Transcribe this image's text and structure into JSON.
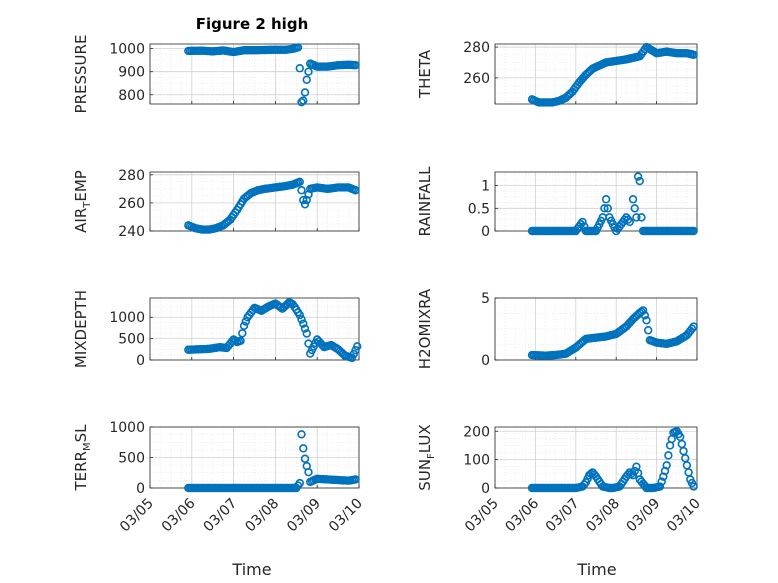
{
  "figure": {
    "title": "Figure 2 high",
    "xlabel": "Time",
    "date_ticks": [
      "03/05",
      "03/06",
      "03/07",
      "03/08",
      "03/09",
      "03/10"
    ]
  },
  "colors": {
    "marker": "#0072BD",
    "grid": "#dcdcdc",
    "axis": "#262626"
  },
  "chart_data": [
    {
      "type": "scatter",
      "name": "pressure",
      "ylabel": "PRESSURE",
      "xlim": [
        "03/05",
        "03/10"
      ],
      "ylim": [
        760,
        1020
      ],
      "yticks": [
        800,
        900,
        1000
      ],
      "grid": true,
      "x": [
        "03/05 22:00",
        "03/06 06:00",
        "03/06 12:00",
        "03/06 18:00",
        "03/07 00:00",
        "03/07 06:00",
        "03/07 12:00",
        "03/07 18:00",
        "03/08 00:00",
        "03/08 06:00",
        "03/08 10:00",
        "03/08 13:00",
        "03/08 14:00",
        "03/08 15:00",
        "03/08 16:00",
        "03/08 17:00",
        "03/08 18:00",
        "03/08 19:00",
        "03/08 20:00",
        "03/09 00:00",
        "03/09 06:00",
        "03/09 12:00",
        "03/09 18:00",
        "03/09 22:00"
      ],
      "y": [
        990,
        991,
        988,
        992,
        985,
        993,
        993,
        994,
        995,
        995,
        999,
        1005,
        915,
        768,
        775,
        810,
        865,
        900,
        935,
        922,
        922,
        928,
        930,
        928
      ]
    },
    {
      "type": "scatter",
      "name": "theta",
      "ylabel": "THETA",
      "xlim": [
        "03/05",
        "03/10"
      ],
      "ylim": [
        243,
        282
      ],
      "yticks": [
        260,
        280
      ],
      "grid": true,
      "x": [
        "03/05 22:00",
        "03/06 02:00",
        "03/06 06:00",
        "03/06 10:00",
        "03/06 14:00",
        "03/06 18:00",
        "03/06 22:00",
        "03/07 02:00",
        "03/07 06:00",
        "03/07 10:00",
        "03/07 14:00",
        "03/07 18:00",
        "03/08 00:00",
        "03/08 06:00",
        "03/08 10:00",
        "03/08 14:00",
        "03/08 18:00",
        "03/09 00:00",
        "03/09 06:00",
        "03/09 12:00",
        "03/09 18:00",
        "03/09 22:00"
      ],
      "y": [
        246,
        244,
        244,
        244,
        245,
        247,
        251,
        257,
        262,
        266,
        268,
        270,
        271,
        272,
        273,
        274,
        280,
        276,
        277,
        276,
        276,
        275
      ]
    },
    {
      "type": "scatter",
      "name": "air_temp",
      "ylabel": "AIR_TEMP",
      "ylabel_main": "AIR",
      "ylabel_sub": "T",
      "ylabel_rest": "EMP",
      "xlim": [
        "03/05",
        "03/10"
      ],
      "ylim": [
        240,
        282
      ],
      "yticks": [
        240,
        260,
        280
      ],
      "grid": true,
      "x": [
        "03/05 22:00",
        "03/06 02:00",
        "03/06 06:00",
        "03/06 10:00",
        "03/06 14:00",
        "03/06 18:00",
        "03/06 22:00",
        "03/07 02:00",
        "03/07 06:00",
        "03/07 10:00",
        "03/07 14:00",
        "03/07 18:00",
        "03/08 00:00",
        "03/08 06:00",
        "03/08 10:00",
        "03/08 14:00",
        "03/08 15:00",
        "03/08 16:00",
        "03/08 17:00",
        "03/08 18:00",
        "03/08 20:00",
        "03/09 00:00",
        "03/09 06:00",
        "03/09 12:00",
        "03/09 18:00",
        "03/09 22:00"
      ],
      "y": [
        244,
        242,
        241,
        241,
        242,
        244,
        248,
        255,
        263,
        267,
        269,
        270,
        271,
        272,
        273,
        275,
        269,
        262,
        259,
        262,
        270,
        271,
        270,
        271,
        271,
        269
      ]
    },
    {
      "type": "scatter",
      "name": "rainfall",
      "ylabel": "RAINFALL",
      "xlim": [
        "03/05",
        "03/10"
      ],
      "ylim": [
        0,
        1.3
      ],
      "yticks": [
        0,
        0.5,
        1
      ],
      "ytick_labels": [
        "0",
        "0.5",
        "1"
      ],
      "grid": true,
      "x": [
        "03/05 22:00",
        "03/06 06:00",
        "03/06 12:00",
        "03/06 18:00",
        "03/07 00:00",
        "03/07 04:00",
        "03/07 06:00",
        "03/07 12:00",
        "03/07 16:00",
        "03/07 18:00",
        "03/07 20:00",
        "03/07 22:00",
        "03/08 00:00",
        "03/08 04:00",
        "03/08 06:00",
        "03/08 08:00",
        "03/08 10:00",
        "03/08 12:00",
        "03/08 13:00",
        "03/08 14:00",
        "03/08 15:00",
        "03/08 16:00",
        "03/08 18:00",
        "03/09 00:00",
        "03/09 06:00",
        "03/09 12:00",
        "03/09 18:00",
        "03/09 22:00"
      ],
      "y": [
        0,
        0,
        0,
        0,
        0,
        0.2,
        0,
        0,
        0.3,
        0.7,
        0.3,
        0.15,
        0,
        0.2,
        0.3,
        0.2,
        0.7,
        0.3,
        1.2,
        1.1,
        0.3,
        0,
        0,
        0,
        0,
        0,
        0,
        0
      ]
    },
    {
      "type": "scatter",
      "name": "mixdepth",
      "ylabel": "MIXDEPTH",
      "xlim": [
        "03/05",
        "03/10"
      ],
      "ylim": [
        0,
        1450
      ],
      "yticks": [
        0,
        500,
        1000
      ],
      "grid": true,
      "x": [
        "03/05 22:00",
        "03/06 04:00",
        "03/06 10:00",
        "03/06 16:00",
        "03/06 20:00",
        "03/07 00:00",
        "03/07 02:00",
        "03/07 04:00",
        "03/07 06:00",
        "03/07 08:00",
        "03/07 12:00",
        "03/07 16:00",
        "03/07 20:00",
        "03/08 00:00",
        "03/08 04:00",
        "03/08 08:00",
        "03/08 10:00",
        "03/08 12:00",
        "03/08 14:00",
        "03/08 16:00",
        "03/08 18:00",
        "03/08 20:00",
        "03/09 00:00",
        "03/09 04:00",
        "03/09 08:00",
        "03/09 12:00",
        "03/09 16:00",
        "03/09 20:00",
        "03/09 23:00"
      ],
      "y": [
        240,
        250,
        260,
        300,
        280,
        480,
        420,
        450,
        800,
        1000,
        1220,
        1150,
        1250,
        1320,
        1200,
        1350,
        1300,
        1180,
        1050,
        850,
        620,
        150,
        480,
        300,
        350,
        250,
        100,
        50,
        320
      ]
    },
    {
      "type": "scatter",
      "name": "h2omixra",
      "ylabel": "H2OMIXRA",
      "xlim": [
        "03/05",
        "03/10"
      ],
      "ylim": [
        0,
        5
      ],
      "yticks": [
        0,
        5
      ],
      "grid": true,
      "x": [
        "03/05 22:00",
        "03/06 06:00",
        "03/06 12:00",
        "03/06 18:00",
        "03/07 00:00",
        "03/07 06:00",
        "03/07 12:00",
        "03/07 18:00",
        "03/08 00:00",
        "03/08 06:00",
        "03/08 10:00",
        "03/08 14:00",
        "03/08 16:00",
        "03/08 18:00",
        "03/08 20:00",
        "03/09 00:00",
        "03/09 06:00",
        "03/09 12:00",
        "03/09 18:00",
        "03/09 22:00"
      ],
      "y": [
        0.4,
        0.35,
        0.4,
        0.5,
        1.0,
        1.7,
        1.8,
        1.9,
        2.1,
        2.7,
        3.3,
        3.8,
        4.0,
        3.2,
        1.6,
        1.4,
        1.3,
        1.5,
        2.0,
        2.7
      ]
    },
    {
      "type": "scatter",
      "name": "terr_msl",
      "ylabel": "TERR_MSL",
      "ylabel_main": "TERR",
      "ylabel_sub": "M",
      "ylabel_rest": "SL",
      "xlim": [
        "03/05",
        "03/10"
      ],
      "ylim": [
        0,
        1000
      ],
      "yticks": [
        0,
        500,
        1000
      ],
      "grid": true,
      "x": [
        "03/05 22:00",
        "03/06 06:00",
        "03/06 12:00",
        "03/06 18:00",
        "03/07 00:00",
        "03/07 06:00",
        "03/07 12:00",
        "03/07 18:00",
        "03/08 00:00",
        "03/08 06:00",
        "03/08 12:00",
        "03/08 14:00",
        "03/08 15:00",
        "03/08 16:00",
        "03/08 17:00",
        "03/08 18:00",
        "03/08 19:00",
        "03/08 20:00",
        "03/09 00:00",
        "03/09 06:00",
        "03/09 12:00",
        "03/09 18:00",
        "03/09 22:00"
      ],
      "y": [
        0,
        0,
        0,
        0,
        0,
        0,
        0,
        0,
        0,
        0,
        0,
        80,
        880,
        650,
        480,
        360,
        260,
        100,
        150,
        140,
        130,
        120,
        140
      ]
    },
    {
      "type": "scatter",
      "name": "sun_flux",
      "ylabel": "SUN_FLUX",
      "ylabel_main": "SUN",
      "ylabel_sub": "F",
      "ylabel_rest": "LUX",
      "xlim": [
        "03/05",
        "03/10"
      ],
      "ylim": [
        0,
        215
      ],
      "yticks": [
        0,
        100,
        200
      ],
      "grid": true,
      "x": [
        "03/05 22:00",
        "03/06 06:00",
        "03/06 12:00",
        "03/06 18:00",
        "03/07 00:00",
        "03/07 04:00",
        "03/07 06:00",
        "03/07 08:00",
        "03/07 10:00",
        "03/07 12:00",
        "03/07 16:00",
        "03/07 20:00",
        "03/07 22:00",
        "03/08 02:00",
        "03/08 06:00",
        "03/08 08:00",
        "03/08 10:00",
        "03/08 12:00",
        "03/08 14:00",
        "03/08 18:00",
        "03/08 22:00",
        "03/09 02:00",
        "03/09 04:00",
        "03/09 06:00",
        "03/09 08:00",
        "03/09 10:00",
        "03/09 12:00",
        "03/09 14:00",
        "03/09 16:00",
        "03/09 18:00",
        "03/09 20:00",
        "03/09 22:00"
      ],
      "y": [
        0,
        0,
        0,
        0,
        0,
        5,
        20,
        45,
        55,
        40,
        5,
        0,
        0,
        5,
        40,
        55,
        45,
        75,
        30,
        0,
        0,
        5,
        40,
        80,
        150,
        195,
        200,
        180,
        130,
        80,
        30,
        5
      ]
    }
  ]
}
